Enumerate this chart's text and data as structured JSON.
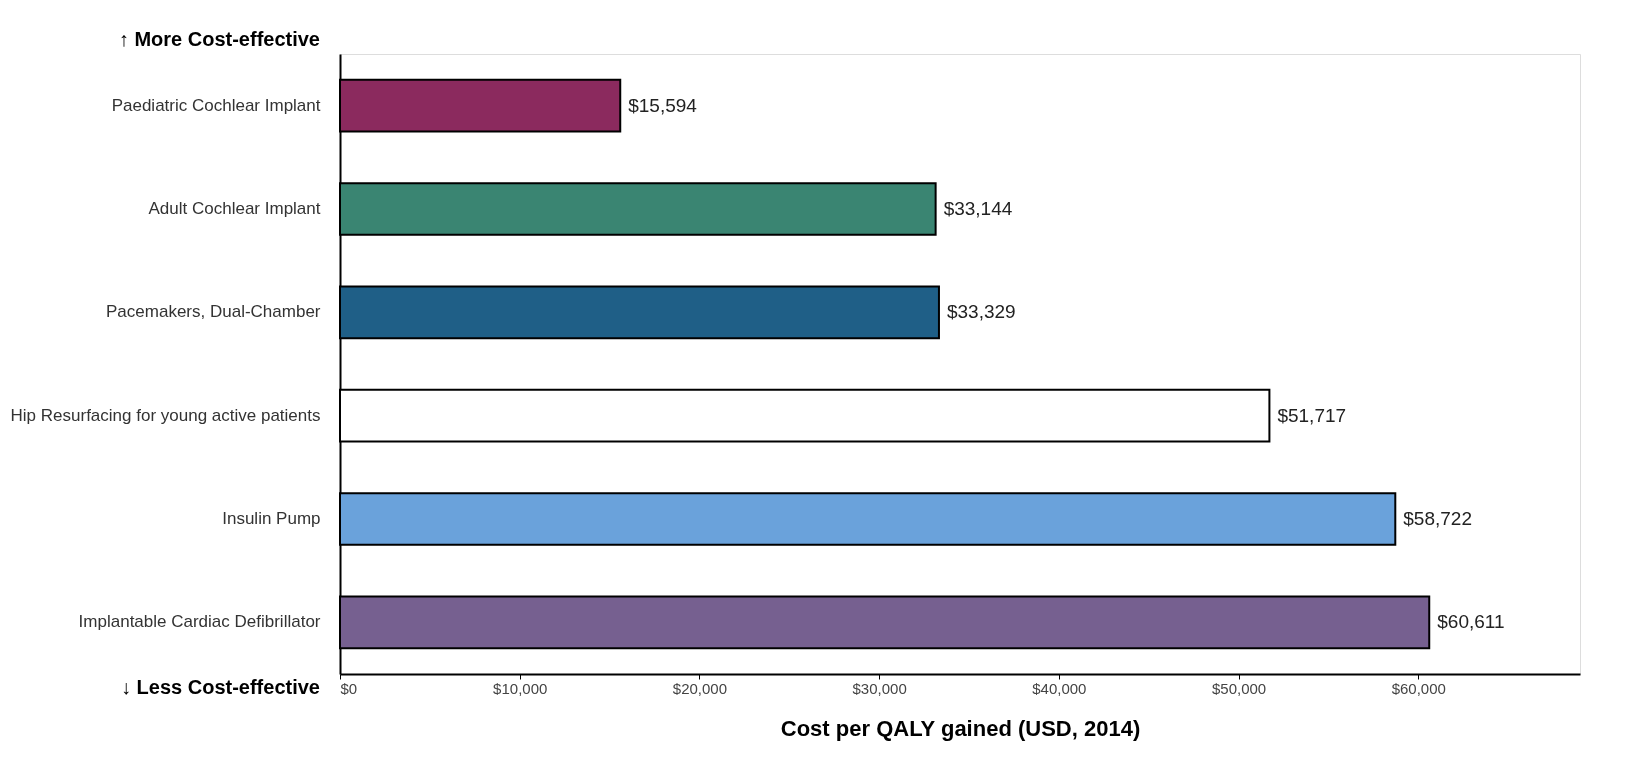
{
  "chart_data": {
    "type": "bar",
    "orientation": "horizontal",
    "xlabel": "Cost per QALY gained (USD, 2014)",
    "categories": [
      "Paediatric Cochlear Implant",
      "Adult Cochlear Implant",
      "Pacemakers, Dual-Chamber",
      "Hip Resurfacing for young active patients",
      "Insulin Pump",
      "Implantable Cardiac Defibrillator"
    ],
    "values": [
      15594,
      33144,
      33329,
      51717,
      58722,
      60611
    ],
    "colors": [
      "#8b2a5e",
      "#3a8572",
      "#1f5f87",
      "#ffffff",
      "#6aa2db",
      "#766090"
    ],
    "xlim": [
      0,
      69000
    ],
    "xticks": [
      {
        "value": 0,
        "label": "$0"
      },
      {
        "value": 10000,
        "label": "$10,000"
      },
      {
        "value": 20000,
        "label": "$20,000"
      },
      {
        "value": 30000,
        "label": "$30,000"
      },
      {
        "value": 40000,
        "label": "$40,000"
      },
      {
        "value": 50000,
        "label": "$50,000"
      },
      {
        "value": 60000,
        "label": "$60,000"
      }
    ],
    "value_labels": [
      "$15,594",
      "$33,144",
      "$33,329",
      "$51,717",
      "$58,722",
      "$60,611"
    ],
    "grid": false,
    "annotations": [
      "↑ More Cost-effective",
      "↓ Less Cost-effective"
    ]
  }
}
